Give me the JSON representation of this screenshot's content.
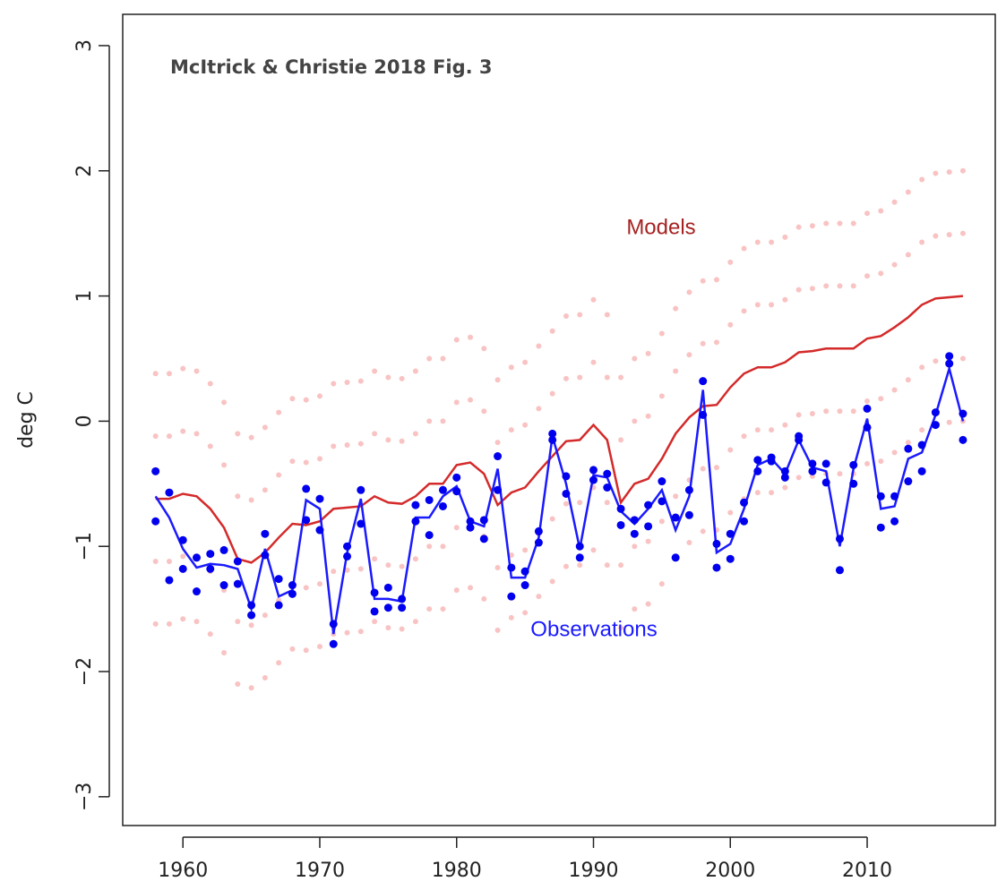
{
  "chart_data": {
    "type": "line",
    "title": "McItrick & Christie 2018 Fig. 3",
    "ylabel": "deg C",
    "x": [
      1958,
      1959,
      1960,
      1961,
      1962,
      1963,
      1964,
      1965,
      1966,
      1967,
      1968,
      1969,
      1970,
      1971,
      1972,
      1973,
      1974,
      1975,
      1976,
      1977,
      1978,
      1979,
      1980,
      1981,
      1982,
      1983,
      1984,
      1985,
      1986,
      1987,
      1988,
      1989,
      1990,
      1991,
      1992,
      1993,
      1994,
      1995,
      1996,
      1997,
      1998,
      1999,
      2000,
      2001,
      2002,
      2003,
      2004,
      2005,
      2006,
      2007,
      2008,
      2009,
      2010,
      2011,
      2012,
      2013,
      2014,
      2015,
      2016,
      2017
    ],
    "xlim": [
      1955.6,
      2019.36
    ],
    "xticks": [
      1960,
      1970,
      1980,
      1990,
      2000,
      2010
    ],
    "ylim": [
      -3.23,
      3.25
    ],
    "yticks": [
      {
        "value": -3,
        "label": "−3"
      },
      {
        "value": -2,
        "label": "−2"
      },
      {
        "value": -1,
        "label": "−1"
      },
      0,
      1,
      2,
      3
    ],
    "series": [
      {
        "name": "Models",
        "color": "#d42a2a",
        "label_color": "#a52222",
        "values": [
          -0.62,
          -0.62,
          -0.58,
          -0.6,
          -0.7,
          -0.85,
          -1.1,
          -1.13,
          -1.05,
          -0.93,
          -0.82,
          -0.83,
          -0.8,
          -0.7,
          -0.69,
          -0.68,
          -0.6,
          -0.65,
          -0.66,
          -0.6,
          -0.5,
          -0.5,
          -0.35,
          -0.33,
          -0.42,
          -0.67,
          -0.57,
          -0.53,
          -0.4,
          -0.28,
          -0.16,
          -0.15,
          -0.03,
          -0.15,
          -0.65,
          -0.5,
          -0.46,
          -0.3,
          -0.1,
          0.03,
          0.12,
          0.13,
          0.27,
          0.38,
          0.43,
          0.43,
          0.47,
          0.55,
          0.56,
          0.58,
          0.58,
          0.58,
          0.66,
          0.68,
          0.75,
          0.83,
          0.93,
          0.98,
          0.99,
          1.0
        ]
      },
      {
        "name": "Observations",
        "color": "#1a1aff",
        "label_color": "#1a1aff",
        "values": [
          -0.6,
          -0.77,
          -1.02,
          -1.17,
          -1.14,
          -1.15,
          -1.18,
          -1.5,
          -1.02,
          -1.4,
          -1.35,
          -0.63,
          -0.7,
          -1.7,
          -1.05,
          -0.62,
          -1.42,
          -1.42,
          -1.44,
          -0.77,
          -0.77,
          -0.6,
          -0.52,
          -0.8,
          -0.84,
          -0.38,
          -1.25,
          -1.25,
          -0.93,
          -0.12,
          -0.5,
          -1.02,
          -0.43,
          -0.45,
          -0.72,
          -0.82,
          -0.7,
          -0.55,
          -0.87,
          -0.6,
          0.25,
          -1.05,
          -0.98,
          -0.7,
          -0.35,
          -0.3,
          -0.42,
          -0.15,
          -0.37,
          -0.4,
          -1.0,
          -0.38,
          0.02,
          -0.7,
          -0.68,
          -0.3,
          -0.25,
          0.05,
          0.42,
          0
        ]
      }
    ],
    "model_runs": {
      "color": "#f9c3c3",
      "values": [
        [
          -1.62,
          -1.12,
          -0.12,
          0.38
        ],
        [
          -1.62,
          -1.12,
          -0.12,
          0.38
        ],
        [
          -1.58,
          -1.08,
          -0.08,
          0.42
        ],
        [
          -1.6,
          -1.1,
          -0.1,
          0.4
        ],
        [
          -1.7,
          -1.2,
          -0.2,
          0.3
        ],
        [
          -1.85,
          -1.35,
          -0.35,
          0.15
        ],
        [
          -2.1,
          -1.6,
          -0.6,
          -0.1
        ],
        [
          -2.13,
          -1.63,
          -0.63,
          -0.13
        ],
        [
          -2.05,
          -1.55,
          -0.55,
          -0.05
        ],
        [
          -1.93,
          -1.43,
          -0.43,
          0.07
        ],
        [
          -1.82,
          -1.32,
          -0.32,
          0.18
        ],
        [
          -1.83,
          -1.33,
          -0.33,
          0.17
        ],
        [
          -1.8,
          -1.3,
          -0.3,
          0.2
        ],
        [
          -1.7,
          -1.2,
          -0.2,
          0.3
        ],
        [
          -1.69,
          -1.19,
          -0.19,
          0.31
        ],
        [
          -1.68,
          -1.18,
          -0.18,
          0.32
        ],
        [
          -1.6,
          -1.1,
          -0.1,
          0.4
        ],
        [
          -1.65,
          -1.15,
          -0.15,
          0.35
        ],
        [
          -1.66,
          -1.16,
          -0.16,
          0.34
        ],
        [
          -1.6,
          -1.1,
          -0.1,
          0.4
        ],
        [
          -1.5,
          -1.0,
          0.0,
          0.5
        ],
        [
          -1.5,
          -1.0,
          0.0,
          0.5
        ],
        [
          -1.35,
          -0.85,
          0.15,
          0.65
        ],
        [
          -1.33,
          -0.83,
          0.17,
          0.67
        ],
        [
          -1.42,
          -0.92,
          0.08,
          0.58
        ],
        [
          -1.67,
          -1.17,
          -0.17,
          0.33
        ],
        [
          -1.57,
          -1.07,
          -0.07,
          0.43
        ],
        [
          -1.53,
          -1.03,
          -0.03,
          0.47
        ],
        [
          -1.4,
          -0.9,
          0.1,
          0.6
        ],
        [
          -1.28,
          -0.78,
          0.22,
          0.72
        ],
        [
          -1.16,
          -0.66,
          0.34,
          0.84
        ],
        [
          -1.15,
          -0.65,
          0.35,
          0.85
        ],
        [
          -1.03,
          -0.53,
          0.47,
          0.97
        ],
        [
          -1.15,
          -0.65,
          0.35,
          0.85
        ],
        [
          -1.65,
          -1.15,
          -0.15,
          0.35
        ],
        [
          -1.5,
          -1.0,
          0.0,
          0.5
        ],
        [
          -1.46,
          -0.96,
          0.04,
          0.54
        ],
        [
          -1.3,
          -0.8,
          0.2,
          0.7
        ],
        [
          -1.1,
          -0.6,
          0.4,
          0.9
        ],
        [
          -0.97,
          -0.47,
          0.53,
          1.03
        ],
        [
          -0.88,
          -0.38,
          0.62,
          1.12
        ],
        [
          -0.87,
          -0.37,
          0.63,
          1.13
        ],
        [
          -0.73,
          -0.23,
          0.77,
          1.27
        ],
        [
          -0.62,
          -0.12,
          0.88,
          1.38
        ],
        [
          -0.57,
          -0.07,
          0.93,
          1.43
        ],
        [
          -0.57,
          -0.07,
          0.93,
          1.43
        ],
        [
          -0.53,
          -0.03,
          0.97,
          1.47
        ],
        [
          -0.45,
          0.05,
          1.05,
          1.55
        ],
        [
          -0.44,
          0.06,
          1.06,
          1.56
        ],
        [
          -0.42,
          0.08,
          1.08,
          1.58
        ],
        [
          -0.42,
          0.08,
          1.08,
          1.58
        ],
        [
          -0.42,
          0.08,
          1.08,
          1.58
        ],
        [
          -0.34,
          0.16,
          1.16,
          1.66
        ],
        [
          -0.32,
          0.18,
          1.18,
          1.68
        ],
        [
          -0.25,
          0.25,
          1.25,
          1.75
        ],
        [
          -0.17,
          0.33,
          1.33,
          1.83
        ],
        [
          -0.07,
          0.43,
          1.43,
          1.93
        ],
        [
          -0.02,
          0.48,
          1.48,
          1.98
        ],
        [
          -0.01,
          0.49,
          1.49,
          1.99
        ],
        [
          0,
          0.5,
          1.5,
          2.0
        ]
      ]
    },
    "observation_points": {
      "color": "#0000ee",
      "values": [
        [
          -0.4,
          -0.8
        ],
        [
          -0.57,
          -1.27
        ],
        [
          -0.95,
          -1.18
        ],
        [
          -1.09,
          -1.36
        ],
        [
          -1.06,
          -1.18
        ],
        [
          -1.03,
          -1.31
        ],
        [
          -1.12,
          -1.3
        ],
        [
          -1.47,
          -1.55
        ],
        [
          -0.9,
          -1.07
        ],
        [
          -1.26,
          -1.47
        ],
        [
          -1.31,
          -1.38
        ],
        [
          -0.54,
          -0.79
        ],
        [
          -0.62,
          -0.87
        ],
        [
          -1.62,
          -1.78
        ],
        [
          -1.0,
          -1.08
        ],
        [
          -0.55,
          -0.82
        ],
        [
          -1.37,
          -1.52
        ],
        [
          -1.33,
          -1.49
        ],
        [
          -1.42,
          -1.49
        ],
        [
          -0.67,
          -0.8
        ],
        [
          -0.63,
          -0.91
        ],
        [
          -0.55,
          -0.68
        ],
        [
          -0.45,
          -0.56
        ],
        [
          -0.8,
          -0.85
        ],
        [
          -0.79,
          -0.94
        ],
        [
          -0.28,
          -0.55
        ],
        [
          -1.17,
          -1.4
        ],
        [
          -1.2,
          -1.31
        ],
        [
          -0.88,
          -0.97
        ],
        [
          -0.1,
          -0.15
        ],
        [
          -0.44,
          -0.58
        ],
        [
          -1.0,
          -1.09
        ],
        [
          -0.39,
          -0.47
        ],
        [
          -0.42,
          -0.53
        ],
        [
          -0.7,
          -0.83
        ],
        [
          -0.79,
          -0.9
        ],
        [
          -0.67,
          -0.84
        ],
        [
          -0.48,
          -0.64
        ],
        [
          -0.77,
          -1.09
        ],
        [
          -0.55,
          -0.75
        ],
        [
          0.32,
          0.05
        ],
        [
          -0.98,
          -1.17
        ],
        [
          -0.9,
          -1.1
        ],
        [
          -0.65,
          -0.8
        ],
        [
          -0.31,
          -0.4
        ],
        [
          -0.29,
          -0.32
        ],
        [
          -0.4,
          -0.45
        ],
        [
          -0.12,
          -0.15
        ],
        [
          -0.34,
          -0.4
        ],
        [
          -0.34,
          -0.49
        ],
        [
          -0.94,
          -1.19
        ],
        [
          -0.35,
          -0.5
        ],
        [
          0.1,
          -0.05
        ],
        [
          -0.6,
          -0.85
        ],
        [
          -0.6,
          -0.8
        ],
        [
          -0.22,
          -0.48
        ],
        [
          -0.19,
          -0.4
        ],
        [
          0.07,
          -0.03
        ],
        [
          0.52,
          0.46
        ],
        [
          0.06,
          -0.15
        ]
      ]
    }
  }
}
